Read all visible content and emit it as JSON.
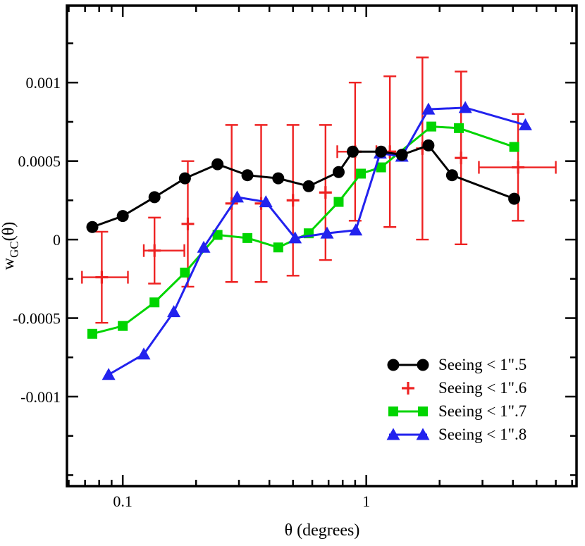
{
  "figure": {
    "background": "#ffffff",
    "xlabel": "θ (degrees)",
    "ylabel": {
      "base": "w",
      "sub": "GC",
      "tail": "(θ)"
    }
  },
  "chart_data": {
    "type": "line",
    "title": "",
    "xlabel": "θ (degrees)",
    "ylabel": "w_GC(θ)",
    "xscale": "log",
    "xlim": [
      0.059,
      7.3
    ],
    "ylim": [
      -0.00157,
      0.00149
    ],
    "grid": false,
    "legend_position": "lower right",
    "draw_order": [
      1,
      2,
      3,
      0
    ],
    "xticks": {
      "major": [
        0.1,
        1
      ],
      "labels": [
        "0.1",
        "1"
      ],
      "minor": [
        0.06,
        0.07,
        0.08,
        0.09,
        0.2,
        0.3,
        0.4,
        0.5,
        0.6,
        0.7,
        0.8,
        0.9,
        2,
        3,
        4,
        5,
        6,
        7
      ]
    },
    "yticks": {
      "major": [
        -0.001,
        -0.0005,
        0,
        0.0005,
        0.001
      ],
      "labels": [
        "-0.001",
        "-0.0005",
        "0",
        "0.0005",
        "0.001"
      ],
      "minor": [
        -0.0015,
        -0.00125,
        -0.00075,
        -0.00025,
        0.00025,
        0.00075,
        0.00125
      ]
    },
    "series": [
      {
        "name": "Seeing < 1\".5",
        "color": "#000000",
        "marker": "circle",
        "x": [
          0.075,
          0.1,
          0.135,
          0.18,
          0.245,
          0.325,
          0.435,
          0.58,
          0.77,
          0.88,
          1.15,
          1.4,
          1.8,
          2.25,
          4.05
        ],
        "y": [
          8e-05,
          0.00015,
          0.00027,
          0.00039,
          0.00048,
          0.00041,
          0.00039,
          0.00034,
          0.00043,
          0.00056,
          0.00056,
          0.00054,
          0.0006,
          0.00041,
          0.00026
        ]
      },
      {
        "name": "Seeing < 1\".6",
        "color": "#ee2222",
        "marker": "plus",
        "line": false,
        "x": [
          0.082,
          0.135,
          0.185,
          0.28,
          0.37,
          0.5,
          0.68,
          0.9,
          1.25,
          1.7,
          2.45,
          4.2
        ],
        "y": [
          -0.00024,
          -7e-05,
          0.0001,
          0.00023,
          0.00023,
          0.00025,
          0.0003,
          0.00056,
          0.00056,
          0.00058,
          0.00052,
          0.00046
        ],
        "yerr": [
          0.00029,
          0.00021,
          0.0004,
          0.0005,
          0.0005,
          0.00048,
          0.00043,
          0.00044,
          0.00048,
          0.00058,
          0.00055,
          0.00034
        ],
        "xerr": [
          [
            0.068,
            0.105
          ],
          [
            0.122,
            0.179
          ],
          null,
          null,
          null,
          null,
          null,
          [
            0.76,
            1.1
          ],
          null,
          null,
          null,
          [
            2.9,
            6.0
          ]
        ]
      },
      {
        "name": "Seeing < 1\".7",
        "color": "#00d500",
        "marker": "square",
        "x": [
          0.075,
          0.1,
          0.135,
          0.18,
          0.245,
          0.325,
          0.435,
          0.58,
          0.77,
          0.95,
          1.15,
          1.85,
          2.4,
          4.05
        ],
        "y": [
          -0.0006,
          -0.00055,
          -0.0004,
          -0.00021,
          3e-05,
          1e-05,
          -5e-05,
          4e-05,
          0.00024,
          0.00042,
          0.00046,
          0.00072,
          0.00071,
          0.00059
        ]
      },
      {
        "name": "Seeing < 1\".8",
        "color": "#2222ee",
        "marker": "triangle",
        "x": [
          0.0875,
          0.122,
          0.162,
          0.215,
          0.295,
          0.387,
          0.51,
          0.69,
          0.905,
          1.14,
          1.4,
          1.8,
          2.55,
          4.5
        ],
        "y": [
          -0.00086,
          -0.00073,
          -0.00046,
          -5e-05,
          0.00027,
          0.00024,
          1e-05,
          4e-05,
          6e-05,
          0.00055,
          0.00053,
          0.00083,
          0.00084,
          0.00073
        ]
      }
    ]
  }
}
